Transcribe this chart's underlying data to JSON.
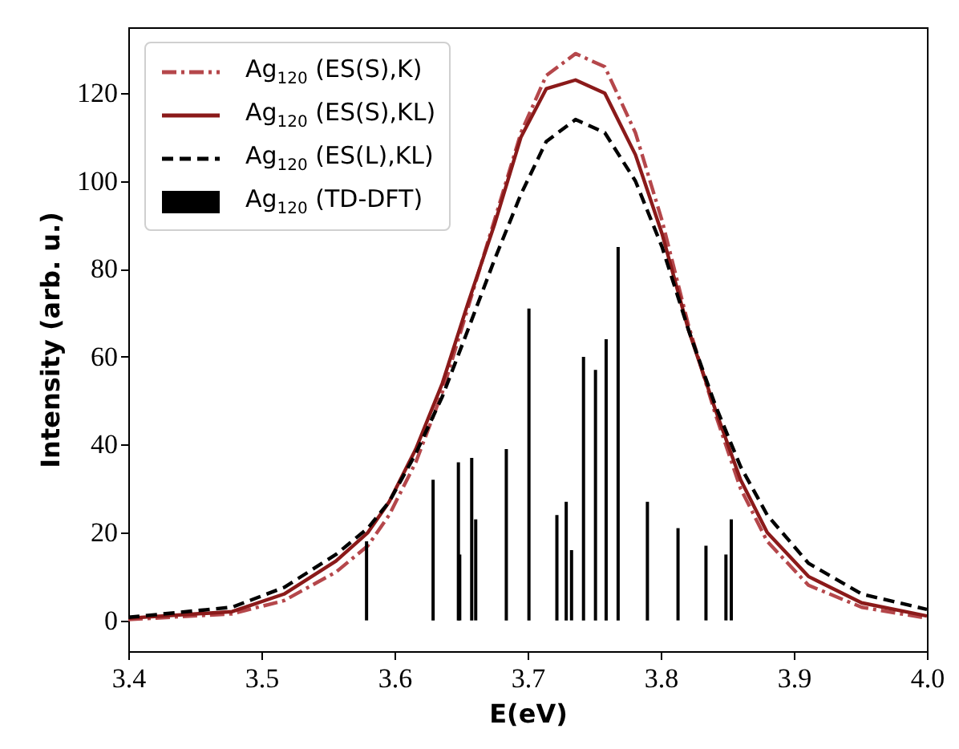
{
  "chart_data": {
    "type": "line",
    "xlabel": "E(eV)",
    "ylabel": "Intensity (arb. u.)",
    "xlim": [
      3.4,
      4.0
    ],
    "ylim": [
      -7,
      135
    ],
    "xticks": [
      3.4,
      3.5,
      3.6,
      3.7,
      3.8,
      3.9,
      {
        "value": 4.0,
        "label": "4.0"
      }
    ],
    "yticks": [
      0,
      20,
      40,
      60,
      80,
      100,
      120
    ],
    "grid": false,
    "legend": "top left",
    "series": [
      {
        "name": "Ag$_{120}$ (ES(S),K)",
        "color": "#b5474b",
        "line_style": "dashdot",
        "x": [
          3.4,
          3.478,
          3.517,
          3.556,
          3.58,
          3.596,
          3.616,
          3.636,
          3.655,
          3.675,
          3.695,
          3.714,
          3.736,
          3.758,
          3.781,
          3.801,
          3.821,
          3.841,
          3.86,
          3.88,
          3.911,
          3.951,
          4.0
        ],
        "values": [
          0.2,
          1.5,
          4.5,
          11,
          17,
          24,
          36,
          52,
          71,
          91,
          111,
          124,
          129,
          126,
          111,
          91,
          67,
          47,
          30,
          18,
          8,
          3,
          0.5
        ]
      },
      {
        "name": "Ag$_{120}$ (ES(S),KL)",
        "color": "#8b1a1a",
        "line_style": "solid",
        "x": [
          3.4,
          3.478,
          3.517,
          3.556,
          3.58,
          3.596,
          3.616,
          3.636,
          3.655,
          3.675,
          3.695,
          3.714,
          3.736,
          3.758,
          3.781,
          3.801,
          3.821,
          3.841,
          3.86,
          3.88,
          3.911,
          3.951,
          4.0
        ],
        "values": [
          0.5,
          2,
          6,
          13.5,
          20,
          27,
          39,
          54,
          72,
          90,
          110,
          121,
          123,
          120,
          106,
          88,
          66,
          48,
          32,
          20,
          10,
          4,
          1
        ]
      },
      {
        "name": "Ag$_{120}$ (ES(L),KL)",
        "color": "#000000",
        "line_style": "dashed",
        "x": [
          3.4,
          3.478,
          3.517,
          3.556,
          3.58,
          3.596,
          3.616,
          3.636,
          3.655,
          3.675,
          3.695,
          3.714,
          3.736,
          3.758,
          3.781,
          3.801,
          3.821,
          3.841,
          3.86,
          3.88,
          3.911,
          3.951,
          4.0
        ],
        "values": [
          0.7,
          3,
          7.5,
          15,
          21,
          27,
          38,
          51,
          66,
          82,
          97,
          109,
          114,
          111,
          100,
          85,
          66,
          49,
          35,
          24,
          13,
          6,
          2.5
        ]
      },
      {
        "name": "Ag$_{120}$ (TD-DFT)",
        "type": "bar",
        "color": "#000000",
        "x": [
          3.579,
          3.629,
          3.648,
          3.649,
          3.658,
          3.661,
          3.684,
          3.701,
          3.722,
          3.729,
          3.733,
          3.742,
          3.751,
          3.759,
          3.768,
          3.79,
          3.813,
          3.834,
          3.849,
          3.853
        ],
        "values": [
          18,
          32,
          36,
          15,
          37,
          23,
          39,
          71,
          24,
          27,
          16,
          60,
          57,
          64,
          85,
          27,
          21,
          17,
          15,
          23
        ]
      }
    ]
  }
}
